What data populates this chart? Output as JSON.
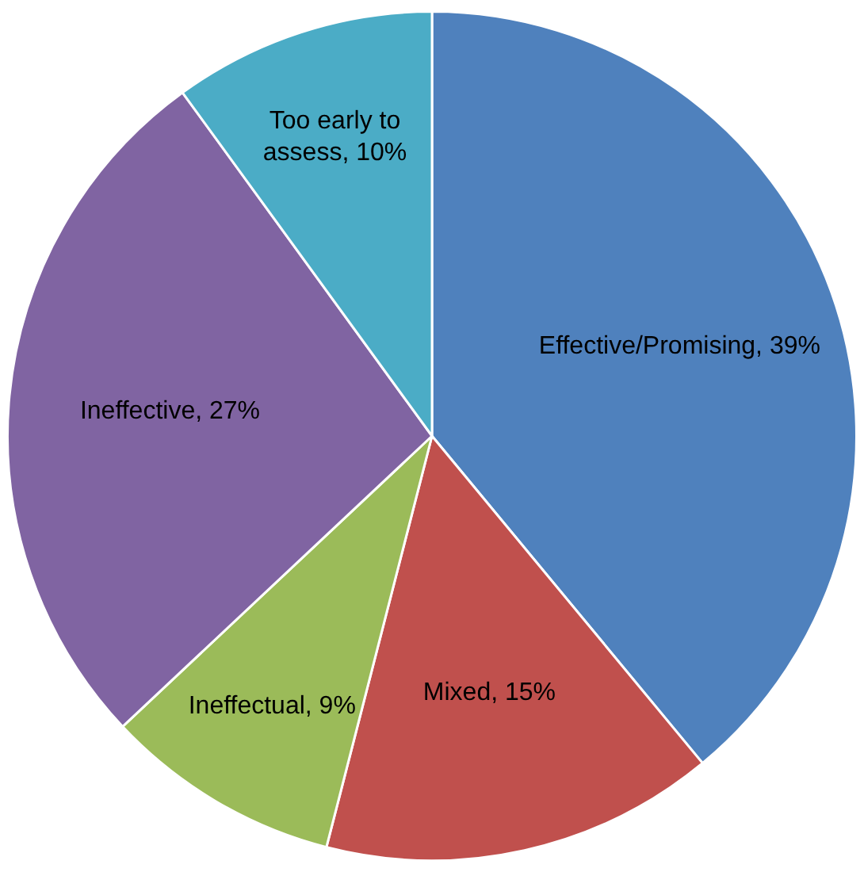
{
  "chart_data": {
    "type": "pie",
    "categories": [
      "Effective/Promising",
      "Mixed",
      "Ineffectual",
      "Ineffective",
      "Too early to assess"
    ],
    "values": [
      39,
      15,
      9,
      27,
      10
    ],
    "colors": [
      "#4f81bd",
      "#c0504d",
      "#9bbb59",
      "#8064a2",
      "#4bacc6"
    ],
    "value_labels": [
      "39%",
      "15%",
      "9%",
      "27%",
      "10%"
    ],
    "legend": false
  }
}
